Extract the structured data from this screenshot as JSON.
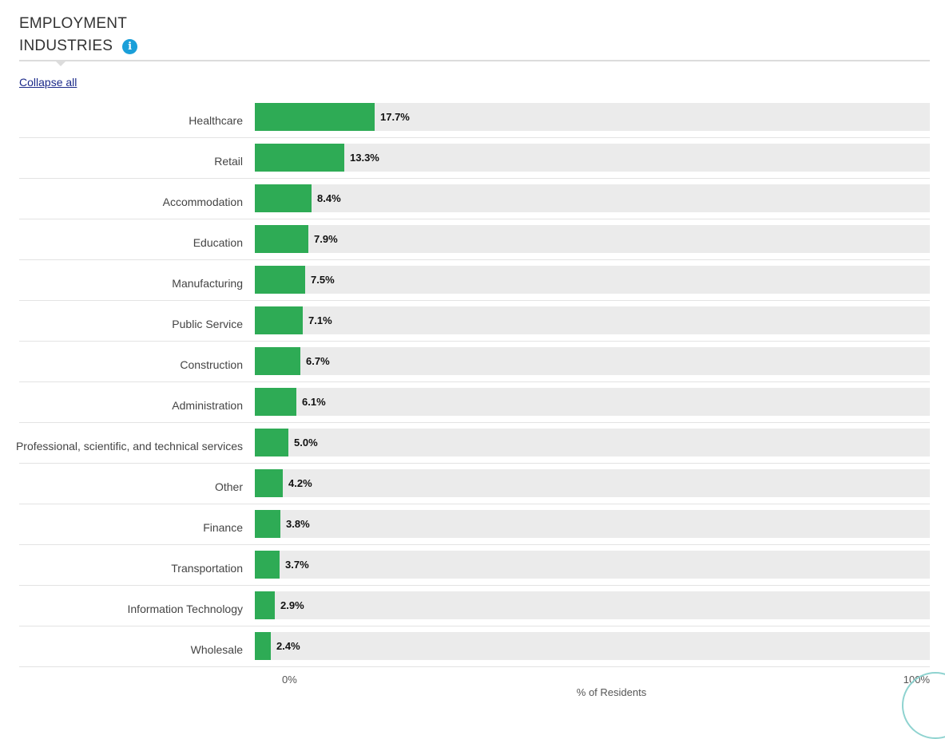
{
  "header": {
    "title_line1": "EMPLOYMENT",
    "title_line2": "INDUSTRIES",
    "info_icon": "info-icon"
  },
  "controls": {
    "collapse_label": "Collapse all"
  },
  "colors": {
    "bar": "#2eab55",
    "track": "#ebebeb",
    "info": "#1a9fd9"
  },
  "chart_data": {
    "type": "bar",
    "orientation": "horizontal",
    "categories": [
      "Healthcare",
      "Retail",
      "Accommodation",
      "Education",
      "Manufacturing",
      "Public Service",
      "Construction",
      "Administration",
      "Professional, scientific, and technical services",
      "Other",
      "Finance",
      "Transportation",
      "Information Technology",
      "Wholesale"
    ],
    "values": [
      17.7,
      13.3,
      8.4,
      7.9,
      7.5,
      7.1,
      6.7,
      6.1,
      5.0,
      4.2,
      3.8,
      3.7,
      2.9,
      2.4
    ],
    "value_labels": [
      "17.7%",
      "13.3%",
      "8.4%",
      "7.9%",
      "7.5%",
      "7.1%",
      "6.7%",
      "6.1%",
      "5.0%",
      "4.2%",
      "3.8%",
      "3.7%",
      "2.9%",
      "2.4%"
    ],
    "xlim": [
      0,
      100
    ],
    "x_ticks": [
      "0%",
      "100%"
    ],
    "xlabel": "% of Residents",
    "grid": false
  }
}
